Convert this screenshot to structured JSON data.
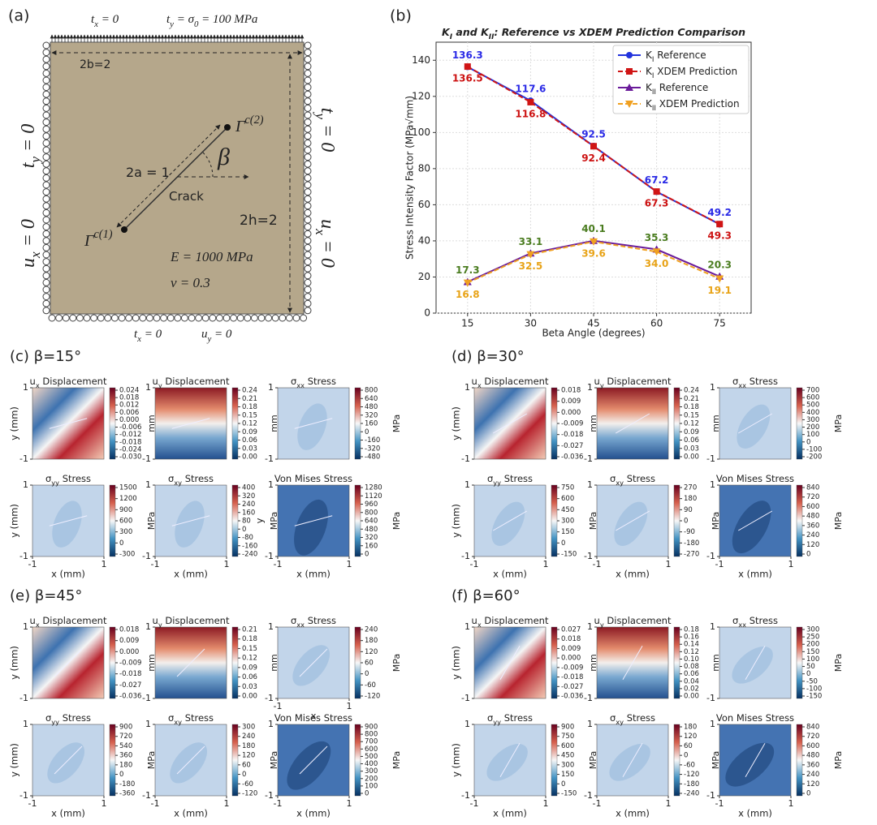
{
  "panel_a": {
    "label": "(a)",
    "texts": [
      [
        "t",
        {
          "sub": "x"
        },
        " = 0"
      ],
      [
        "t",
        {
          "sub": "y"
        },
        " = σ",
        {
          "sub": "0"
        },
        " = 100 MPa"
      ],
      [
        "2b=2"
      ],
      [
        "t",
        {
          "sub": "y"
        },
        " = 0"
      ],
      [
        "u",
        {
          "sub": "x"
        },
        " = 0"
      ],
      [
        "t",
        {
          "sub": "y"
        },
        " = 0"
      ],
      [
        "u",
        {
          "sub": "x"
        },
        " = 0"
      ],
      [
        "2a = 1"
      ],
      [
        "Γ",
        {
          "sup": "c(2)"
        }
      ],
      [
        "β"
      ],
      [
        "Crack"
      ],
      [
        "Γ",
        {
          "sup": "c(1)"
        }
      ],
      [
        "2h=2"
      ],
      [
        "E = 1000 MPa"
      ],
      [
        "ν = 0.3"
      ],
      [
        "t",
        {
          "sub": "x"
        },
        " = 0"
      ],
      [
        "u",
        {
          "sub": "y"
        },
        " = 0"
      ]
    ]
  },
  "chart_data": {
    "type": "line",
    "label": "(b)",
    "title": [
      "K",
      {
        "sub": "I"
      },
      " and K",
      {
        "sub": "II"
      },
      ": Reference vs XDEM Prediction Comparison"
    ],
    "x_label": "Beta Angle (degrees)",
    "y_label": "Stress Intensity Factor (MPa√mm)",
    "x": [
      15,
      30,
      45,
      60,
      75
    ],
    "xlim": [
      7.5,
      82.5
    ],
    "xticks": [
      15,
      30,
      45,
      60,
      75
    ],
    "ylim": [
      0,
      150
    ],
    "yticks": [
      0,
      20,
      40,
      60,
      80,
      100,
      120,
      140
    ],
    "grid": true,
    "legend": "upper-right",
    "series": [
      {
        "name": [
          "K",
          {
            "sub": "I"
          },
          " Reference"
        ],
        "color": "#2233dd",
        "linestyle": "solid",
        "marker": "circle",
        "label_color": "#2a2ae6",
        "label_position": "above",
        "values": [
          136.3,
          117.6,
          92.5,
          67.2,
          49.2
        ]
      },
      {
        "name": [
          "K",
          {
            "sub": "I"
          },
          " XDEM Prediction"
        ],
        "color": "#d01515",
        "linestyle": "dashed",
        "marker": "square",
        "label_color": "#cc1111",
        "label_position": "below",
        "values": [
          136.5,
          116.8,
          92.4,
          67.3,
          49.3
        ]
      },
      {
        "name": [
          "K",
          {
            "sub": "II"
          },
          " Reference"
        ],
        "color": "#6a1b9a",
        "linestyle": "solid",
        "marker": "triangle",
        "label_color": "#4a7c1f",
        "label_position": "above",
        "values": [
          17.3,
          33.1,
          40.1,
          35.3,
          20.3
        ]
      },
      {
        "name": [
          "K",
          {
            "sub": "II"
          },
          " XDEM Prediction"
        ],
        "color": "#f0a020",
        "linestyle": "dashed",
        "marker": "triangle-down",
        "label_color": "#e8a317",
        "label_position": "below",
        "values": [
          16.8,
          32.5,
          39.6,
          34.0,
          19.1
        ],
        "value_labels": [
          "16.8",
          "32.5",
          "39.6",
          "34.0",
          "19.1"
        ]
      }
    ]
  },
  "panels": [
    {
      "label": "(c) β=15°",
      "subplots": [
        {
          "title": [
            "u",
            {
              "sub": "x"
            },
            " Displacement"
          ],
          "unit": "mm",
          "ylabel": "y (mm)",
          "yticks": [
            -1,
            1
          ],
          "cbar_ticks": [
            {
              "value": -0.03,
              "label": "-0.030"
            },
            -0.024,
            -0.018,
            -0.012,
            -0.006,
            {
              "value": 0,
              "label": "0.000"
            },
            0.006,
            0.012,
            0.018,
            0.024
          ]
        },
        {
          "title": [
            "u",
            {
              "sub": "y"
            },
            " Displacement"
          ],
          "unit": "mm",
          "yticks": [
            -1,
            1
          ],
          "cbar_ticks": [
            {
              "value": 0,
              "label": "0.00"
            },
            0.03,
            0.06,
            0.09,
            0.12,
            0.15,
            0.18,
            0.21,
            0.24
          ]
        },
        {
          "title": [
            "σ",
            {
              "sub": "xx"
            },
            " Stress"
          ],
          "unit": "MPa",
          "yticks": [
            -1,
            1
          ],
          "cbar_ticks": [
            -480,
            -320,
            -160,
            0,
            160,
            320,
            480,
            640,
            800
          ]
        },
        {
          "title": [
            "σ",
            {
              "sub": "yy"
            },
            " Stress"
          ],
          "unit": "MPa",
          "ylabel": "y (mm)",
          "yticks": [
            -1,
            1
          ],
          "xticks": [
            -1,
            1
          ],
          "xlabel": "x (mm)",
          "cbar_ticks": [
            -300,
            0,
            300,
            600,
            900,
            1200,
            1500
          ]
        },
        {
          "title": [
            "σ",
            {
              "sub": "xy"
            },
            " Stress"
          ],
          "unit": "MPa",
          "yticks": [
            -1,
            1
          ],
          "xticks": [
            -1,
            1
          ],
          "xlabel": "x (mm)",
          "cbar_ticks": [
            -240,
            -160,
            -80,
            0,
            80,
            160,
            240,
            320,
            400
          ]
        },
        {
          "title": [
            "Von Mises Stress"
          ],
          "unit": "MPa",
          "ylabel": "y",
          "yticks": [
            -1,
            1
          ],
          "xticks": [
            -1,
            1
          ],
          "xlabel": "x (mm)",
          "cbar_ticks": [
            0,
            160,
            320,
            480,
            640,
            800,
            960,
            1120,
            1280
          ]
        }
      ]
    },
    {
      "label": "(d) β=30°",
      "subplots": [
        {
          "title": [
            "u",
            {
              "sub": "x"
            },
            " Displacement"
          ],
          "unit": "mm",
          "ylabel": "y (mm)",
          "yticks": [
            -1,
            1
          ],
          "cbar_ticks": [
            -0.036,
            -0.027,
            -0.018,
            -0.009,
            {
              "value": 0,
              "label": "0.000"
            },
            0.009,
            0.018
          ]
        },
        {
          "title": [
            "u",
            {
              "sub": "y"
            },
            " Displacement"
          ],
          "unit": "mm",
          "yticks": [
            -1,
            1
          ],
          "cbar_ticks": [
            {
              "value": 0,
              "label": "0.00"
            },
            0.03,
            0.06,
            0.09,
            0.12,
            0.15,
            0.18,
            0.21,
            0.24
          ]
        },
        {
          "title": [
            "σ",
            {
              "sub": "xx"
            },
            " Stress"
          ],
          "unit": "MPa",
          "yticks": [
            -1,
            1
          ],
          "cbar_ticks": [
            -200,
            -100,
            0,
            100,
            200,
            300,
            400,
            500,
            600,
            700
          ]
        },
        {
          "title": [
            "σ",
            {
              "sub": "yy"
            },
            " Stress"
          ],
          "unit": "MPa",
          "ylabel": "y (mm)",
          "yticks": [
            -1,
            1
          ],
          "xticks": [
            -1,
            1
          ],
          "xlabel": "x (mm)",
          "cbar_ticks": [
            -150,
            0,
            150,
            300,
            450,
            600,
            750
          ]
        },
        {
          "title": [
            "σ",
            {
              "sub": "xy"
            },
            " Stress"
          ],
          "unit": "MPa",
          "yticks": [
            -1,
            1
          ],
          "xticks": [
            -1,
            1
          ],
          "xlabel": "x (mm)",
          "cbar_ticks": [
            -270,
            -180,
            -90,
            0,
            90,
            180,
            270
          ]
        },
        {
          "title": [
            "Von Mises Stress"
          ],
          "unit": "MPa",
          "yticks": [
            -1,
            1
          ],
          "xticks": [
            -1,
            1
          ],
          "xlabel": "x (mm)",
          "cbar_ticks": [
            0,
            120,
            240,
            360,
            480,
            600,
            720,
            840
          ]
        }
      ]
    },
    {
      "label": "(e) β=45°",
      "subplots": [
        {
          "title": [
            "u",
            {
              "sub": "x"
            },
            " Displacement"
          ],
          "unit": "mm",
          "ylabel": "y (mm)",
          "yticks": [
            -1,
            1
          ],
          "cbar_ticks": [
            -0.036,
            -0.027,
            -0.018,
            -0.009,
            {
              "value": 0,
              "label": "0.000"
            },
            0.009,
            0.018
          ]
        },
        {
          "title": [
            "u",
            {
              "sub": "y"
            },
            " Displacement"
          ],
          "unit": "mm",
          "yticks": [
            -1,
            1
          ],
          "cbar_ticks": [
            {
              "value": 0,
              "label": "0.00"
            },
            0.03,
            0.06,
            0.09,
            0.12,
            0.15,
            0.18,
            0.21
          ]
        },
        {
          "title": [
            "σ",
            {
              "sub": "xx"
            },
            " Stress"
          ],
          "unit": "MPa",
          "yticks": [
            -1,
            1
          ],
          "xticks": [
            -1,
            1
          ],
          "xlabel": "x",
          "cbar_ticks": [
            -120,
            -60,
            0,
            60,
            120,
            180,
            240
          ]
        },
        {
          "title": [
            "σ",
            {
              "sub": "yy"
            },
            " Stress"
          ],
          "unit": "MPa",
          "ylabel": "y (mm)",
          "yticks": [
            -1,
            1
          ],
          "xticks": [
            -1,
            1
          ],
          "xlabel": "x (mm)",
          "cbar_ticks": [
            -360,
            -180,
            0,
            180,
            360,
            540,
            720,
            900
          ]
        },
        {
          "title": [
            "σ",
            {
              "sub": "xy"
            },
            " Stress"
          ],
          "unit": "MPa",
          "yticks": [
            -1,
            1
          ],
          "xticks": [
            -1,
            1
          ],
          "xlabel": "x (mm)",
          "cbar_ticks": [
            -120,
            -60,
            0,
            60,
            120,
            180,
            240,
            300
          ]
        },
        {
          "title": [
            "Von Mises Stress"
          ],
          "unit": "MPa",
          "yticks": [
            -1,
            1
          ],
          "xticks": [
            -1,
            1
          ],
          "xlabel": "x (mm)",
          "cbar_ticks": [
            0,
            100,
            200,
            300,
            400,
            500,
            600,
            700,
            800,
            900
          ]
        }
      ]
    },
    {
      "label": "(f) β=60°",
      "subplots": [
        {
          "title": [
            "u",
            {
              "sub": "x"
            },
            " Displacement"
          ],
          "unit": "mm",
          "ylabel": "y (mm)",
          "yticks": [
            -1,
            1
          ],
          "cbar_ticks": [
            -0.036,
            -0.027,
            -0.018,
            -0.009,
            {
              "value": 0,
              "label": "0.000"
            },
            0.009,
            0.018,
            0.027
          ]
        },
        {
          "title": [
            "u",
            {
              "sub": "y"
            },
            " Displacement"
          ],
          "unit": "mm",
          "yticks": [
            -1,
            1
          ],
          "cbar_ticks": [
            {
              "value": 0,
              "label": "0.00"
            },
            0.02,
            0.04,
            0.06,
            0.08,
            {
              "value": 0.1,
              "label": "0.10"
            },
            0.12,
            0.14,
            0.16,
            0.18
          ]
        },
        {
          "title": [
            "σ",
            {
              "sub": "xx"
            },
            " Stress"
          ],
          "unit": "MPa",
          "yticks": [
            -1,
            1
          ],
          "cbar_ticks": [
            -150,
            -100,
            -50,
            0,
            50,
            100,
            150,
            200,
            250,
            300
          ]
        },
        {
          "title": [
            "σ",
            {
              "sub": "yy"
            },
            " Stress"
          ],
          "unit": "MPa",
          "ylabel": "y (mm)",
          "yticks": [
            -1,
            1
          ],
          "xticks": [
            -1,
            1
          ],
          "xlabel": "x (mm)",
          "cbar_ticks": [
            -150,
            0,
            150,
            300,
            450,
            600,
            750,
            900
          ]
        },
        {
          "title": [
            "σ",
            {
              "sub": "xy"
            },
            " Stress"
          ],
          "unit": "MPa",
          "yticks": [
            -1,
            1
          ],
          "xticks": [
            -1,
            1
          ],
          "xlabel": "x (mm)",
          "cbar_ticks": [
            -240,
            -180,
            -120,
            -60,
            0,
            60,
            120,
            180
          ]
        },
        {
          "title": [
            "Von Mises Stress"
          ],
          "unit": "MPa",
          "yticks": [
            -1,
            1
          ],
          "xticks": [
            -1,
            1
          ],
          "xlabel": "x (mm)",
          "cbar_ticks": [
            0,
            120,
            240,
            360,
            480,
            600,
            720,
            840
          ]
        }
      ]
    }
  ]
}
